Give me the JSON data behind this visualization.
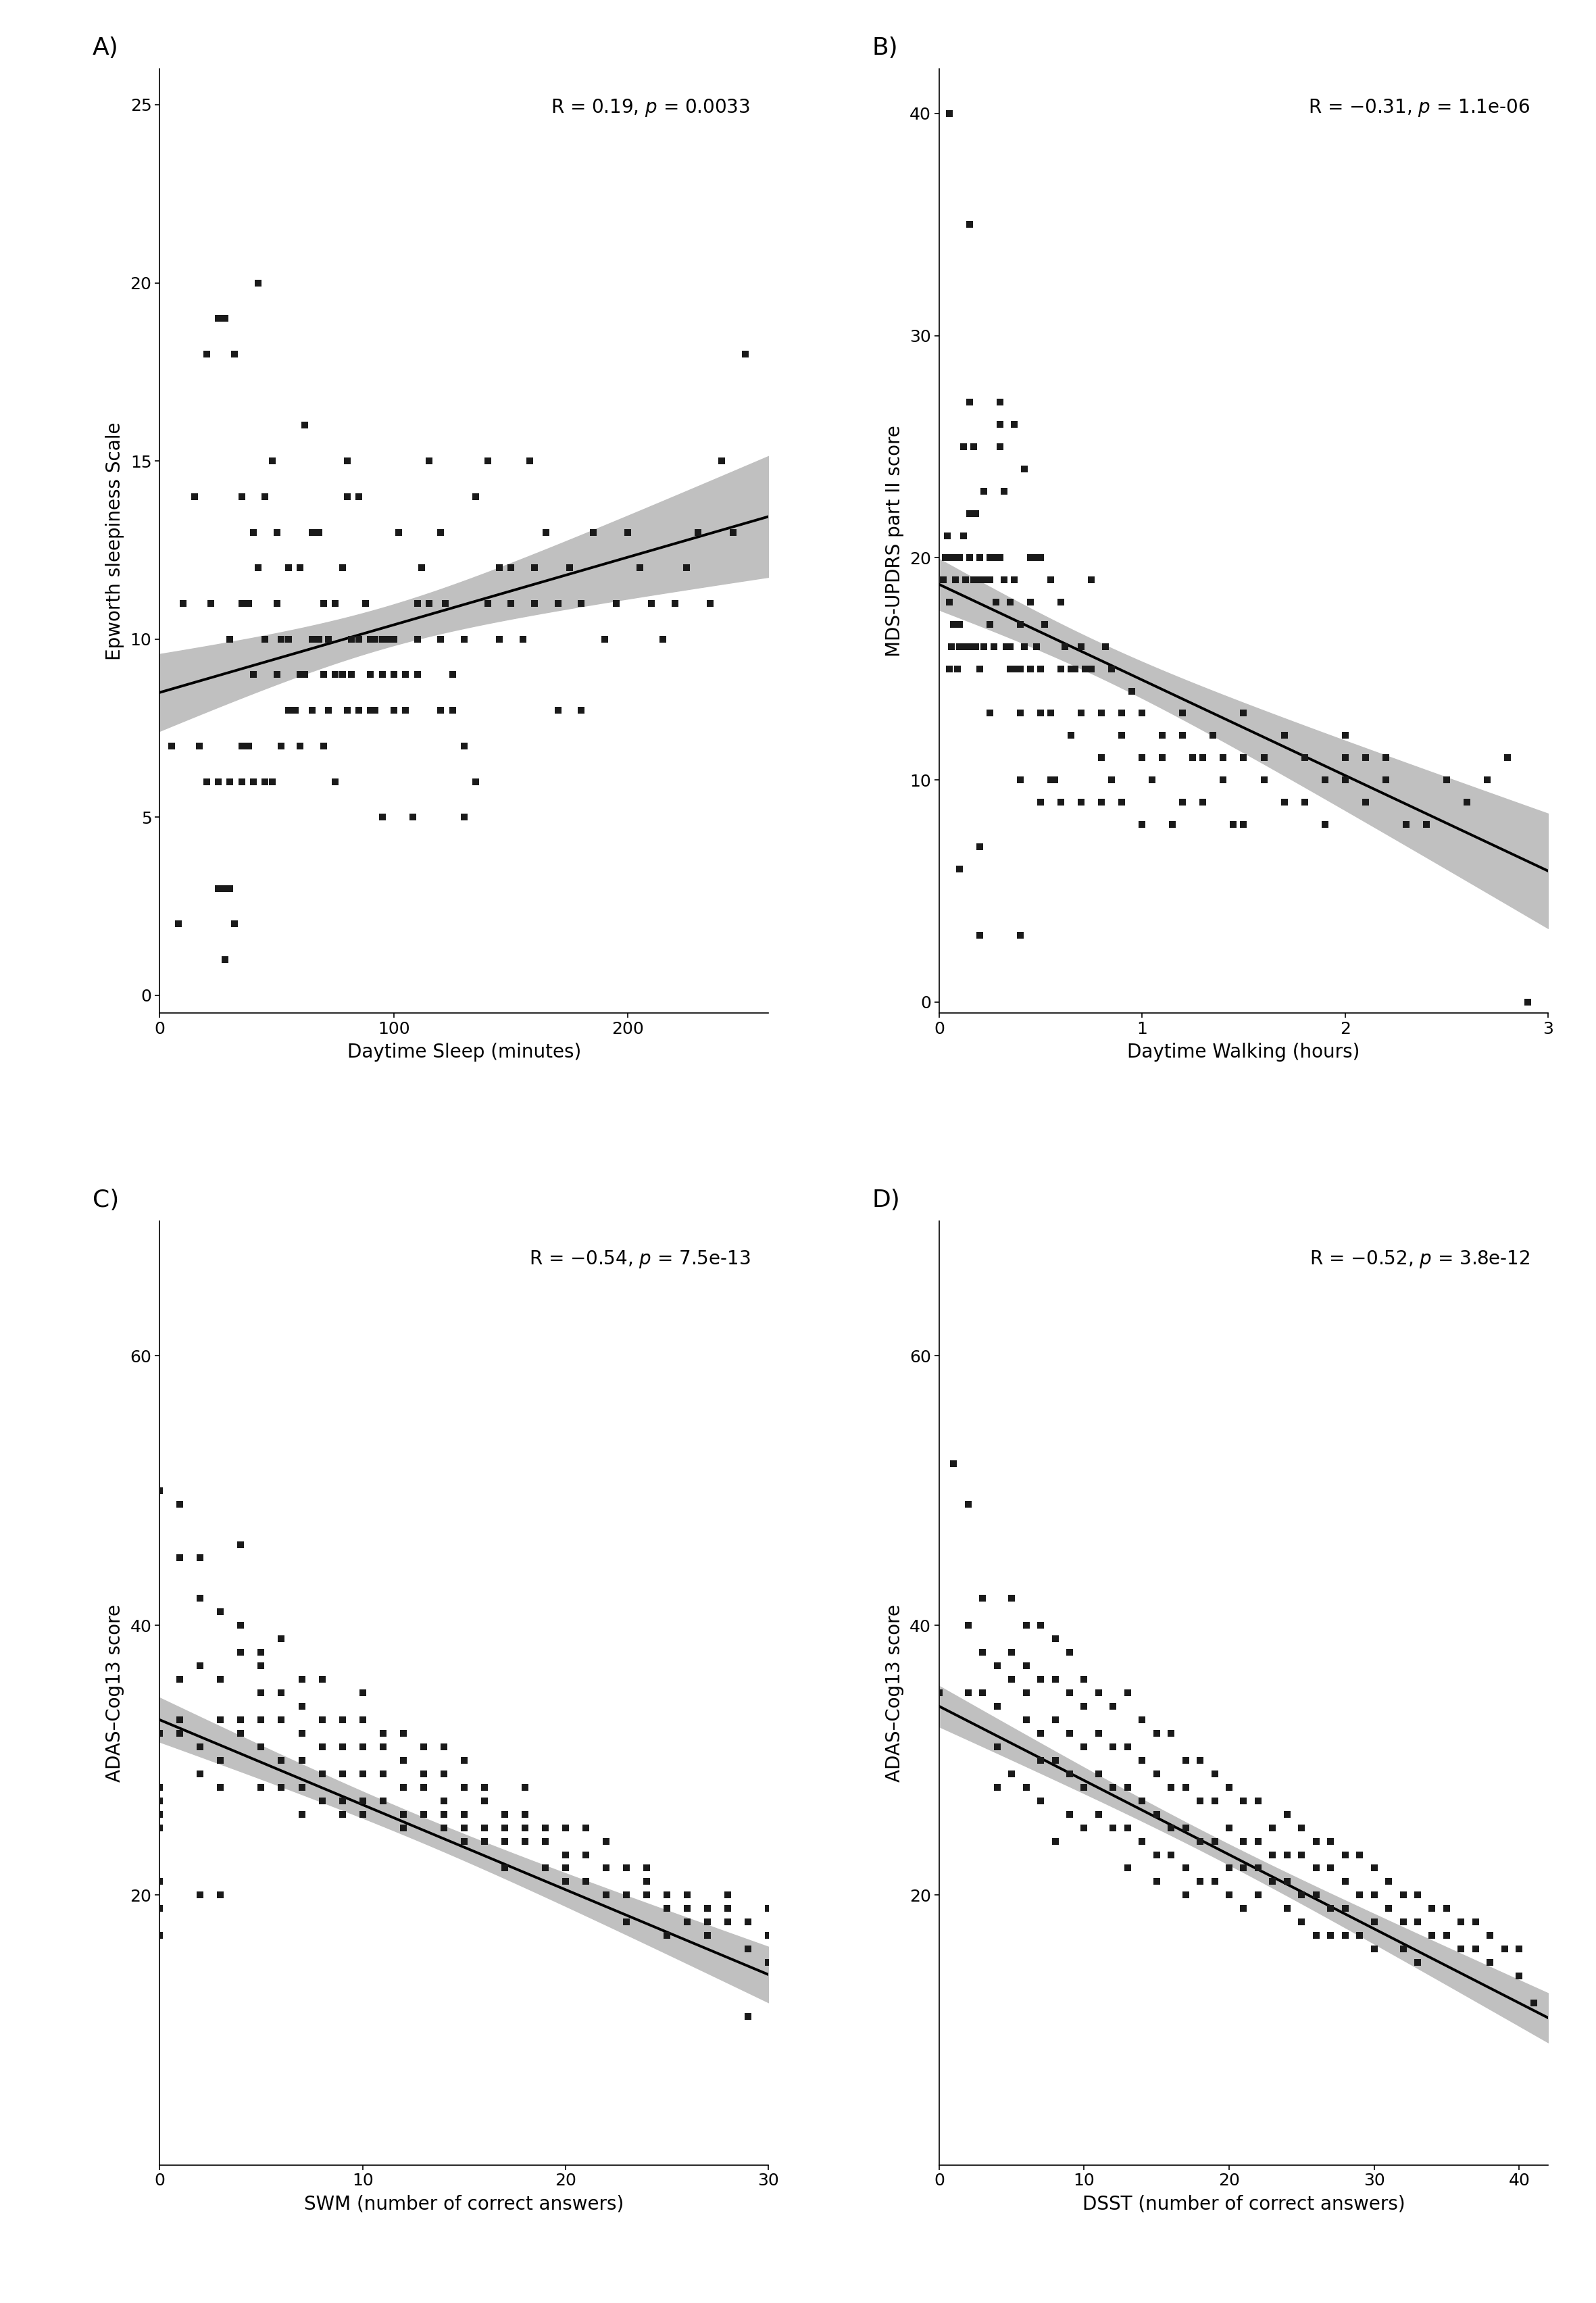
{
  "panel_A": {
    "label": "A)",
    "corr_text": "R = 0.19, ",
    "corr_p": "$p$",
    "corr_pval": " = 0.0033",
    "xlabel": "Daytime Sleep (minutes)",
    "ylabel": "Epworth sleepiness Scale",
    "xlim": [
      0,
      260
    ],
    "ylim": [
      -0.5,
      26
    ],
    "xticks": [
      0,
      100,
      200
    ],
    "yticks": [
      0,
      5,
      10,
      15,
      20,
      25
    ],
    "slope": 0.019,
    "intercept": 8.5,
    "x": [
      5,
      8,
      10,
      15,
      17,
      20,
      20,
      22,
      25,
      25,
      25,
      28,
      28,
      28,
      30,
      30,
      30,
      32,
      32,
      35,
      35,
      35,
      35,
      38,
      38,
      40,
      40,
      40,
      42,
      42,
      45,
      45,
      45,
      48,
      48,
      50,
      50,
      50,
      52,
      52,
      55,
      55,
      55,
      58,
      60,
      60,
      60,
      62,
      62,
      65,
      65,
      65,
      68,
      68,
      70,
      70,
      70,
      72,
      72,
      75,
      75,
      75,
      78,
      78,
      80,
      80,
      80,
      82,
      82,
      85,
      85,
      85,
      88,
      90,
      90,
      90,
      92,
      92,
      95,
      95,
      95,
      98,
      100,
      100,
      100,
      102,
      105,
      105,
      108,
      110,
      110,
      110,
      112,
      115,
      115,
      120,
      120,
      120,
      122,
      125,
      125,
      130,
      130,
      130,
      135,
      135,
      140,
      140,
      145,
      145,
      150,
      150,
      155,
      158,
      160,
      160,
      165,
      170,
      170,
      175,
      180,
      180,
      185,
      190,
      195,
      200,
      205,
      210,
      215,
      220,
      225,
      230,
      235,
      240,
      245,
      250
    ],
    "y": [
      7,
      2,
      11,
      14,
      7,
      18,
      6,
      11,
      19,
      6,
      3,
      19,
      3,
      1,
      10,
      6,
      3,
      18,
      2,
      14,
      11,
      7,
      6,
      7,
      11,
      13,
      9,
      6,
      20,
      12,
      14,
      10,
      6,
      15,
      6,
      13,
      11,
      9,
      10,
      7,
      12,
      10,
      8,
      8,
      9,
      12,
      7,
      16,
      9,
      13,
      10,
      8,
      13,
      10,
      11,
      9,
      7,
      10,
      8,
      11,
      9,
      6,
      9,
      12,
      15,
      14,
      8,
      10,
      9,
      14,
      10,
      8,
      11,
      10,
      9,
      8,
      10,
      8,
      10,
      9,
      5,
      10,
      10,
      9,
      8,
      13,
      9,
      8,
      5,
      11,
      10,
      9,
      12,
      11,
      15,
      13,
      10,
      8,
      11,
      9,
      8,
      10,
      7,
      5,
      14,
      6,
      15,
      11,
      12,
      10,
      12,
      11,
      10,
      15,
      12,
      11,
      13,
      11,
      8,
      12,
      11,
      8,
      13,
      10,
      11,
      13,
      12,
      11,
      10,
      11,
      12,
      13,
      11,
      15,
      13,
      18
    ]
  },
  "panel_B": {
    "label": "B)",
    "corr_text": "R = −0.31, ",
    "corr_p": "$p$",
    "corr_pval": " = 1.1e-06",
    "xlabel": "Daytime Walking (hours)",
    "ylabel": "MDS-UPDRS part II score",
    "xlim": [
      0,
      3
    ],
    "ylim": [
      -0.5,
      42
    ],
    "xticks": [
      0,
      1,
      2,
      3
    ],
    "yticks": [
      0,
      10,
      20,
      30,
      40
    ],
    "slope": -4.3,
    "intercept": 18.8,
    "x": [
      0.02,
      0.03,
      0.04,
      0.05,
      0.05,
      0.05,
      0.06,
      0.06,
      0.07,
      0.08,
      0.08,
      0.09,
      0.1,
      0.1,
      0.1,
      0.1,
      0.12,
      0.12,
      0.13,
      0.13,
      0.15,
      0.15,
      0.15,
      0.15,
      0.15,
      0.17,
      0.17,
      0.18,
      0.18,
      0.2,
      0.2,
      0.2,
      0.2,
      0.2,
      0.22,
      0.22,
      0.22,
      0.25,
      0.25,
      0.25,
      0.25,
      0.27,
      0.27,
      0.28,
      0.3,
      0.3,
      0.3,
      0.3,
      0.32,
      0.32,
      0.33,
      0.35,
      0.35,
      0.35,
      0.37,
      0.37,
      0.38,
      0.4,
      0.4,
      0.4,
      0.4,
      0.4,
      0.42,
      0.42,
      0.45,
      0.45,
      0.45,
      0.47,
      0.48,
      0.5,
      0.5,
      0.5,
      0.5,
      0.52,
      0.55,
      0.55,
      0.55,
      0.57,
      0.6,
      0.6,
      0.6,
      0.62,
      0.65,
      0.65,
      0.67,
      0.7,
      0.7,
      0.7,
      0.72,
      0.75,
      0.75,
      0.8,
      0.8,
      0.8,
      0.82,
      0.85,
      0.85,
      0.9,
      0.9,
      0.9,
      0.95,
      1.0,
      1.0,
      1.0,
      1.05,
      1.1,
      1.1,
      1.15,
      1.2,
      1.2,
      1.2,
      1.25,
      1.3,
      1.3,
      1.35,
      1.4,
      1.4,
      1.45,
      1.5,
      1.5,
      1.5,
      1.6,
      1.6,
      1.7,
      1.7,
      1.8,
      1.8,
      1.9,
      1.9,
      2.0,
      2.0,
      2.0,
      2.1,
      2.1,
      2.2,
      2.2,
      2.3,
      2.4,
      2.5,
      2.6,
      2.7,
      2.8,
      2.9
    ],
    "y": [
      19,
      20,
      21,
      40,
      18,
      15,
      20,
      16,
      17,
      20,
      19,
      15,
      16,
      20,
      17,
      6,
      25,
      21,
      19,
      16,
      35,
      27,
      22,
      20,
      16,
      25,
      19,
      22,
      16,
      20,
      15,
      19,
      7,
      3,
      23,
      19,
      16,
      19,
      17,
      20,
      13,
      20,
      16,
      18,
      27,
      26,
      25,
      20,
      23,
      19,
      16,
      18,
      16,
      15,
      19,
      26,
      15,
      17,
      15,
      10,
      13,
      3,
      24,
      16,
      20,
      18,
      15,
      20,
      16,
      15,
      20,
      13,
      9,
      17,
      19,
      13,
      10,
      10,
      18,
      15,
      9,
      16,
      15,
      12,
      15,
      16,
      13,
      9,
      15,
      19,
      15,
      13,
      11,
      9,
      16,
      15,
      10,
      13,
      12,
      9,
      14,
      13,
      11,
      8,
      10,
      12,
      11,
      8,
      12,
      13,
      9,
      11,
      11,
      9,
      12,
      10,
      11,
      8,
      13,
      11,
      8,
      10,
      11,
      12,
      9,
      11,
      9,
      10,
      8,
      11,
      12,
      10,
      11,
      9,
      10,
      11,
      8,
      8,
      10,
      9,
      10,
      11,
      0
    ]
  },
  "panel_C": {
    "label": "C)",
    "corr_text": "R = −0.54, ",
    "corr_p": "$p$",
    "corr_pval": " = 7.5e-13",
    "xlabel": "SWM (number of correct answers)",
    "ylabel": "ADAS–Cog13 score",
    "xlim": [
      0,
      30
    ],
    "ylim": [
      0,
      70
    ],
    "xticks": [
      0,
      10,
      20,
      30
    ],
    "yticks": [
      20,
      40,
      60
    ],
    "slope": -0.63,
    "intercept": 33.0,
    "x": [
      0,
      0,
      0,
      0,
      0,
      0,
      0,
      0,
      0,
      1,
      1,
      1,
      1,
      1,
      2,
      2,
      2,
      2,
      2,
      2,
      3,
      3,
      3,
      3,
      3,
      3,
      4,
      4,
      4,
      4,
      4,
      5,
      5,
      5,
      5,
      5,
      5,
      6,
      6,
      6,
      6,
      6,
      7,
      7,
      7,
      7,
      7,
      7,
      8,
      8,
      8,
      8,
      8,
      9,
      9,
      9,
      9,
      9,
      10,
      10,
      10,
      10,
      10,
      10,
      11,
      11,
      11,
      11,
      12,
      12,
      12,
      12,
      12,
      13,
      13,
      13,
      13,
      14,
      14,
      14,
      14,
      14,
      15,
      15,
      15,
      15,
      15,
      16,
      16,
      16,
      16,
      17,
      17,
      17,
      17,
      18,
      18,
      18,
      18,
      19,
      19,
      19,
      20,
      20,
      20,
      20,
      21,
      21,
      21,
      22,
      22,
      22,
      23,
      23,
      23,
      24,
      24,
      24,
      25,
      25,
      25,
      25,
      26,
      26,
      26,
      27,
      27,
      27,
      28,
      28,
      28,
      29,
      29,
      29,
      30,
      30,
      30
    ],
    "y": [
      50,
      32,
      28,
      27,
      26,
      25,
      21,
      19,
      17,
      49,
      45,
      36,
      33,
      32,
      45,
      42,
      37,
      31,
      29,
      20,
      41,
      36,
      33,
      30,
      28,
      20,
      46,
      40,
      38,
      33,
      32,
      38,
      37,
      35,
      33,
      31,
      28,
      39,
      35,
      33,
      30,
      28,
      36,
      34,
      32,
      30,
      28,
      26,
      36,
      33,
      31,
      29,
      27,
      33,
      31,
      29,
      27,
      26,
      35,
      33,
      31,
      29,
      27,
      26,
      32,
      31,
      29,
      27,
      32,
      30,
      28,
      26,
      25,
      31,
      29,
      28,
      26,
      31,
      29,
      27,
      26,
      25,
      30,
      28,
      26,
      25,
      24,
      28,
      27,
      25,
      24,
      26,
      25,
      24,
      22,
      28,
      26,
      25,
      24,
      25,
      24,
      22,
      25,
      23,
      22,
      21,
      25,
      23,
      21,
      24,
      22,
      20,
      22,
      20,
      18,
      22,
      21,
      20,
      20,
      20,
      19,
      17,
      20,
      19,
      18,
      19,
      18,
      17,
      20,
      19,
      18,
      18,
      16,
      11,
      19,
      17,
      15
    ]
  },
  "panel_D": {
    "label": "D)",
    "corr_text": "R = −0.52, ",
    "corr_p": "$p$",
    "corr_pval": " = 3.8e-12",
    "xlabel": "DSST (number of correct answers)",
    "ylabel": "ADAS–Cog13 score",
    "xlim": [
      0,
      42
    ],
    "ylim": [
      0,
      70
    ],
    "xticks": [
      0,
      10,
      20,
      30,
      40
    ],
    "yticks": [
      20,
      40,
      60
    ],
    "slope": -0.55,
    "intercept": 34.0,
    "x": [
      0,
      1,
      2,
      2,
      2,
      3,
      3,
      3,
      4,
      4,
      4,
      4,
      5,
      5,
      5,
      5,
      6,
      6,
      6,
      6,
      6,
      7,
      7,
      7,
      7,
      7,
      8,
      8,
      8,
      8,
      8,
      9,
      9,
      9,
      9,
      9,
      10,
      10,
      10,
      10,
      10,
      11,
      11,
      11,
      11,
      12,
      12,
      12,
      12,
      13,
      13,
      13,
      13,
      13,
      14,
      14,
      14,
      14,
      15,
      15,
      15,
      15,
      15,
      16,
      16,
      16,
      16,
      17,
      17,
      17,
      17,
      17,
      18,
      18,
      18,
      18,
      19,
      19,
      19,
      19,
      20,
      20,
      20,
      20,
      21,
      21,
      21,
      21,
      22,
      22,
      22,
      22,
      23,
      23,
      23,
      24,
      24,
      24,
      24,
      25,
      25,
      25,
      25,
      26,
      26,
      26,
      26,
      27,
      27,
      27,
      27,
      28,
      28,
      28,
      28,
      29,
      29,
      29,
      30,
      30,
      30,
      30,
      31,
      31,
      32,
      32,
      32,
      33,
      33,
      33,
      34,
      34,
      35,
      35,
      36,
      36,
      37,
      37,
      38,
      38,
      39,
      40,
      40,
      41
    ],
    "y": [
      35,
      52,
      49,
      40,
      35,
      42,
      38,
      35,
      37,
      34,
      31,
      28,
      42,
      38,
      36,
      29,
      40,
      37,
      35,
      33,
      28,
      40,
      36,
      32,
      30,
      27,
      39,
      36,
      33,
      30,
      24,
      38,
      35,
      32,
      29,
      26,
      36,
      34,
      31,
      28,
      25,
      35,
      32,
      29,
      26,
      34,
      31,
      28,
      25,
      35,
      31,
      28,
      25,
      22,
      33,
      30,
      27,
      24,
      32,
      29,
      26,
      23,
      21,
      32,
      28,
      25,
      23,
      30,
      28,
      25,
      22,
      20,
      30,
      27,
      24,
      21,
      29,
      27,
      24,
      21,
      28,
      25,
      22,
      20,
      27,
      24,
      22,
      19,
      27,
      24,
      22,
      20,
      25,
      23,
      21,
      26,
      23,
      21,
      19,
      25,
      23,
      20,
      18,
      24,
      22,
      20,
      17,
      24,
      22,
      19,
      17,
      23,
      21,
      19,
      17,
      23,
      20,
      17,
      22,
      20,
      18,
      16,
      21,
      19,
      20,
      18,
      16,
      20,
      18,
      15,
      19,
      17,
      19,
      17,
      18,
      16,
      18,
      16,
      17,
      15,
      16,
      16,
      14,
      12
    ]
  },
  "background_color": "#ffffff",
  "scatter_color": "#1a1a1a",
  "line_color": "#000000",
  "ci_color": "#c0c0c0",
  "marker_size": 55,
  "line_width": 2.8,
  "label_fontsize": 20,
  "tick_fontsize": 18,
  "annot_fontsize": 20,
  "panel_label_fontsize": 26
}
